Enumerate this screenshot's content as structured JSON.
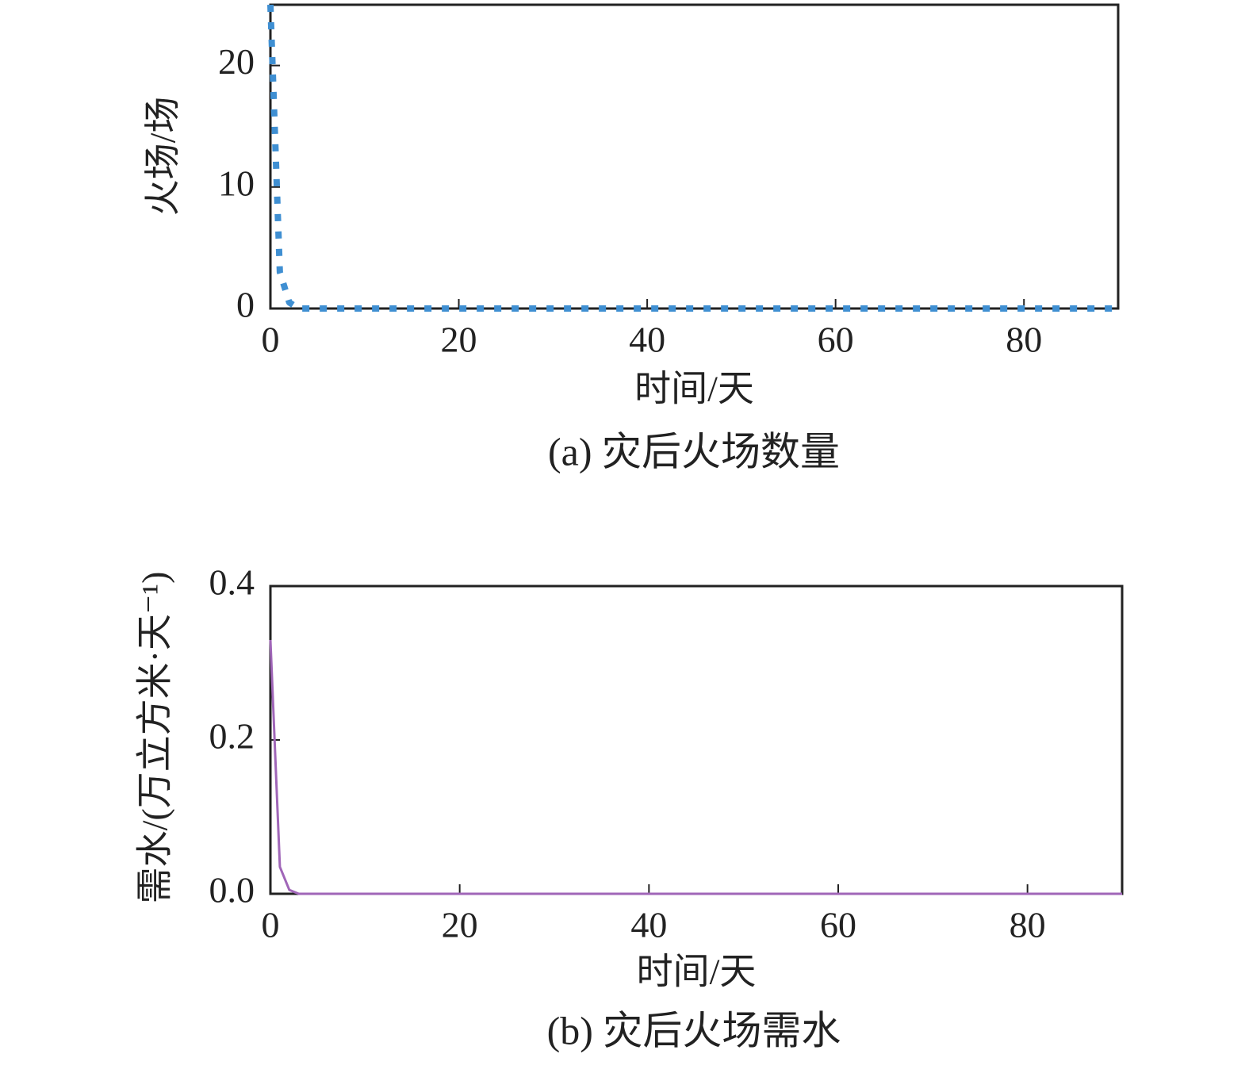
{
  "chart_data": [
    {
      "type": "line",
      "x_label": "时间/天",
      "y_label": "火场/场",
      "caption": "(a) 灾后火场数量",
      "x": [
        0,
        1,
        2,
        3,
        90
      ],
      "values": [
        25,
        3,
        0.5,
        0,
        0
      ],
      "color": "#3f8fd2",
      "line_style": "dotted",
      "xlim": [
        0,
        90
      ],
      "xticks": [
        0,
        20,
        40,
        60,
        80
      ],
      "ylim": [
        0,
        25
      ],
      "yticks": [
        0,
        10,
        20
      ]
    },
    {
      "type": "line",
      "x_label": "时间/天",
      "y_label": "需水/(万立方米·天⁻¹)",
      "caption": "(b) 灾后火场需水",
      "x": [
        0,
        1,
        2,
        3,
        90
      ],
      "values": [
        0.33,
        0.035,
        0.005,
        0,
        0
      ],
      "color": "#a066b8",
      "line_style": "solid",
      "xlim": [
        0,
        90
      ],
      "xticks": [
        0,
        20,
        40,
        60,
        80
      ],
      "ylim": [
        0,
        0.4
      ],
      "yticks": [
        {
          "value": 0,
          "label": "0.0"
        },
        0.2,
        0.4
      ]
    }
  ]
}
